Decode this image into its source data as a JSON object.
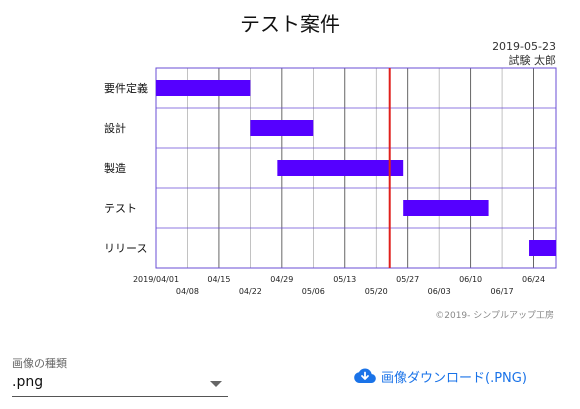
{
  "page": {
    "title": "テスト案件",
    "date": "2019-05-23",
    "author": "試験 太郎",
    "copyright": "©2019- シンプルアップ工房"
  },
  "controls": {
    "select_label": "画像の種類",
    "select_value": ".png",
    "download_label": "画像ダウンロード(.PNG)",
    "download_icon": "cloud-download-icon"
  },
  "colors": {
    "bar": "#5500ff",
    "today_line": "#e0201c",
    "accent": "#1a73e8"
  },
  "chart_data": {
    "type": "gantt",
    "x_start": "2019-04-01",
    "x_end": "2019-06-29",
    "today": "2019-05-23",
    "tick_labels_top": [
      "2019/04/01",
      "04/15",
      "04/29",
      "05/13",
      "05/27",
      "06/10",
      "06/24"
    ],
    "tick_labels_bottom": [
      "04/08",
      "04/22",
      "05/06",
      "05/20",
      "06/03",
      "06/17"
    ],
    "tasks": [
      {
        "name": "要件定義",
        "start": "2019-04-01",
        "end": "2019-04-22"
      },
      {
        "name": "設計",
        "start": "2019-04-22",
        "end": "2019-05-06"
      },
      {
        "name": "製造",
        "start": "2019-04-28",
        "end": "2019-05-26"
      },
      {
        "name": "テスト",
        "start": "2019-05-26",
        "end": "2019-06-14"
      },
      {
        "name": "リリース",
        "start": "2019-06-23",
        "end": "2019-06-29"
      }
    ]
  }
}
